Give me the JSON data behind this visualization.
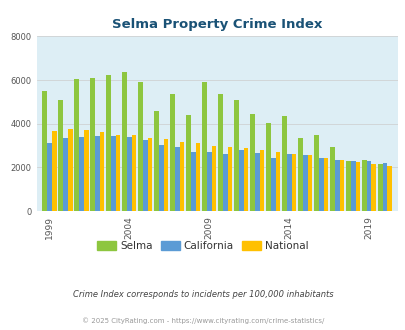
{
  "title": "Selma Property Crime Index",
  "title_color": "#1a5276",
  "years": [
    1999,
    2000,
    2001,
    2002,
    2003,
    2004,
    2005,
    2006,
    2007,
    2008,
    2009,
    2010,
    2011,
    2012,
    2013,
    2014,
    2015,
    2016,
    2017,
    2018,
    2019,
    2020
  ],
  "selma": [
    5500,
    5100,
    6050,
    6100,
    6250,
    6350,
    5900,
    4600,
    5350,
    4400,
    5900,
    5350,
    5100,
    4450,
    4050,
    4350,
    3350,
    3500,
    2950,
    2300,
    2350,
    2150
  ],
  "california": [
    3100,
    3350,
    3400,
    3450,
    3450,
    3400,
    3250,
    3050,
    2950,
    2700,
    2700,
    2600,
    2800,
    2650,
    2450,
    2600,
    2550,
    2450,
    2350,
    2300,
    2300,
    2200
  ],
  "national": [
    3650,
    3750,
    3700,
    3600,
    3500,
    3500,
    3350,
    3300,
    3150,
    3100,
    3000,
    2950,
    2900,
    2800,
    2700,
    2600,
    2550,
    2450,
    2350,
    2250,
    2150,
    2050
  ],
  "selma_color": "#8dc63f",
  "california_color": "#5b9bd5",
  "national_color": "#ffc000",
  "bg_color": "#ddeef5",
  "ylim": [
    0,
    8000
  ],
  "yticks": [
    0,
    2000,
    4000,
    6000,
    8000
  ],
  "xlabel_ticks": [
    1999,
    2004,
    2009,
    2014,
    2019
  ],
  "footer1": "Crime Index corresponds to incidents per 100,000 inhabitants",
  "footer2": "© 2025 CityRating.com - https://www.cityrating.com/crime-statistics/",
  "legend_labels": [
    "Selma",
    "California",
    "National"
  ]
}
